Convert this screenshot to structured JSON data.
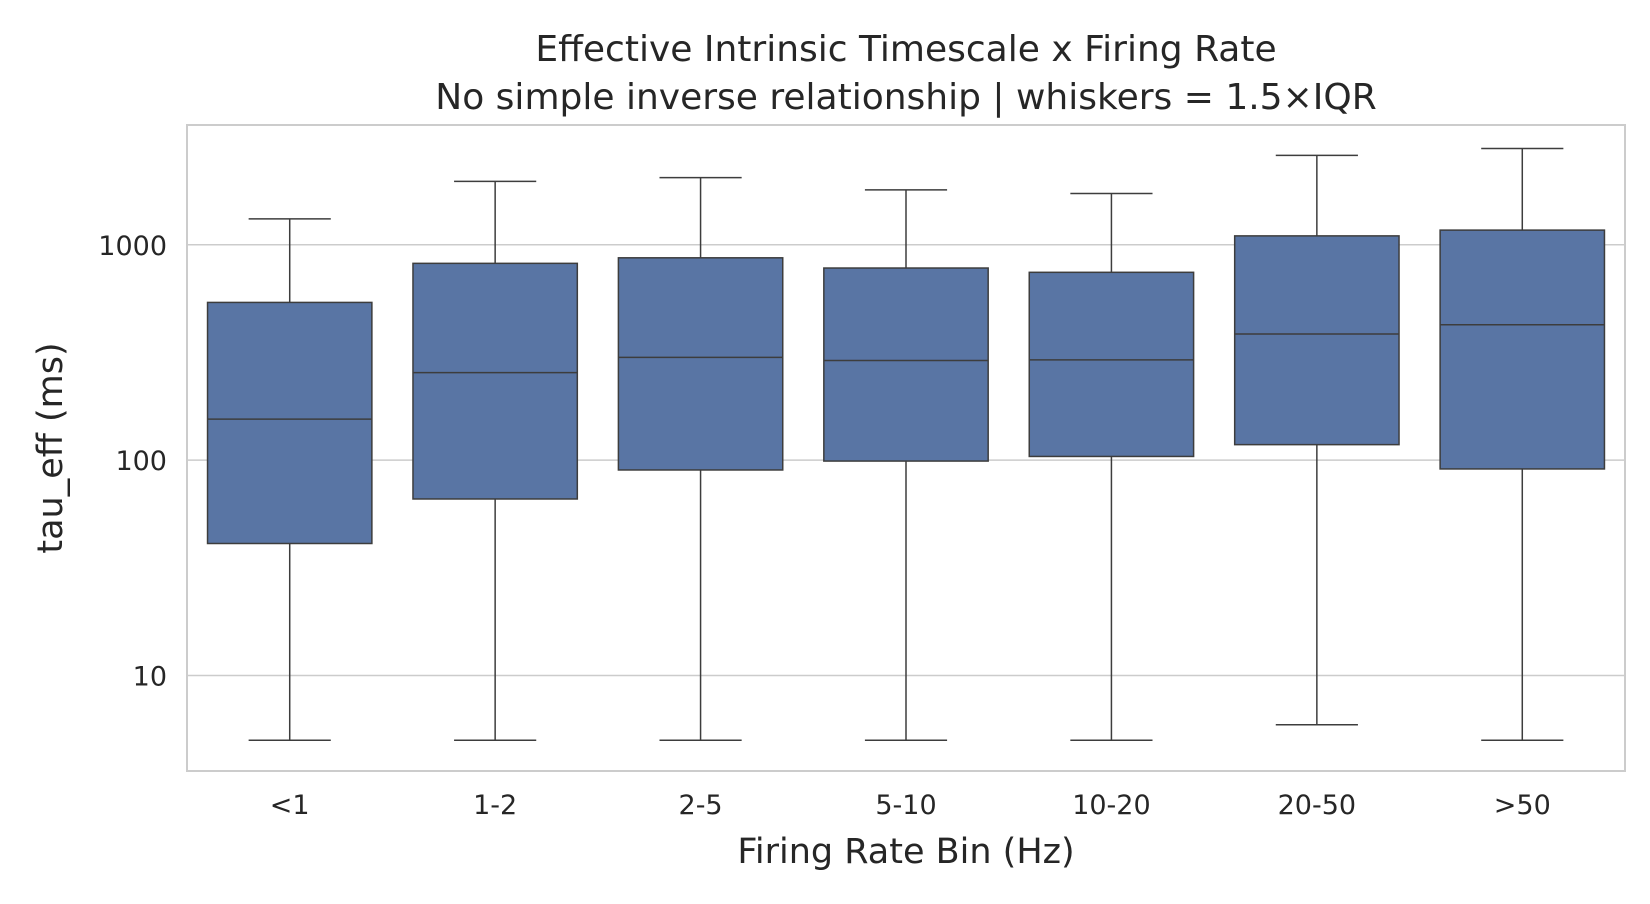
{
  "chart_data": {
    "type": "box",
    "title": "Effective Intrinsic Timescale x Firing Rate",
    "subtitle": "No simple inverse relationship | whiskers = 1.5×IQR",
    "xlabel": "Firing Rate Bin (Hz)",
    "ylabel": "tau_eff (ms)",
    "y_scale": "log",
    "ylim": [
      3.6,
      3600
    ],
    "y_ticks": [
      10,
      100,
      1000
    ],
    "y_tick_labels": [
      "10",
      "100",
      "1000"
    ],
    "grid": "horizontal",
    "box_color": "#5975a4",
    "line_color": "#3d3d3d",
    "categories": [
      "<1",
      "1-2",
      "2-5",
      "5-10",
      "10-20",
      "20-50",
      ">50"
    ],
    "boxes": [
      {
        "category": "<1",
        "whisker_low": 5,
        "q1": 41,
        "median": 155,
        "q3": 540,
        "whisker_high": 1320
      },
      {
        "category": "1-2",
        "whisker_low": 5,
        "q1": 66,
        "median": 255,
        "q3": 820,
        "whisker_high": 1970
      },
      {
        "category": "2-5",
        "whisker_low": 5,
        "q1": 90,
        "median": 300,
        "q3": 870,
        "whisker_high": 2050
      },
      {
        "category": "5-10",
        "whisker_low": 5,
        "q1": 99,
        "median": 290,
        "q3": 780,
        "whisker_high": 1800
      },
      {
        "category": "10-20",
        "whisker_low": 5,
        "q1": 104,
        "median": 292,
        "q3": 745,
        "whisker_high": 1730
      },
      {
        "category": "20-50",
        "whisker_low": 5.9,
        "q1": 118,
        "median": 385,
        "q3": 1100,
        "whisker_high": 2600
      },
      {
        "category": ">50",
        "whisker_low": 5,
        "q1": 91,
        "median": 425,
        "q3": 1170,
        "whisker_high": 2800
      }
    ]
  }
}
